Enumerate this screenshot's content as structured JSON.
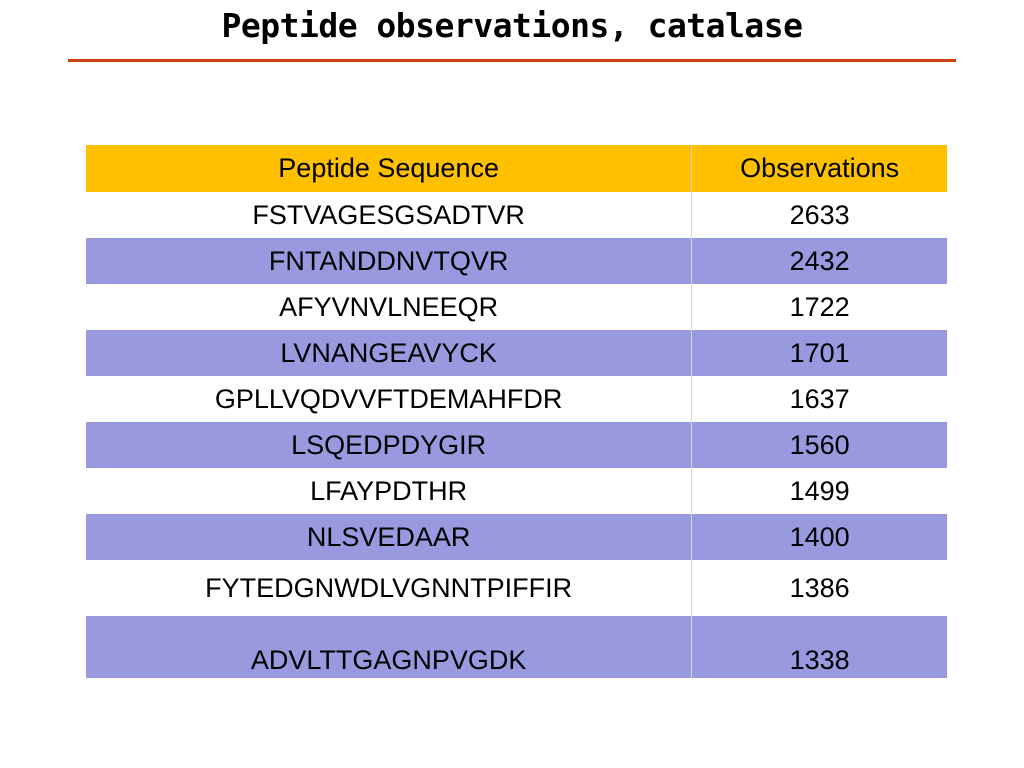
{
  "slide": {
    "title": "Peptide observations, catalase"
  },
  "table": {
    "headers": {
      "sequence": "Peptide Sequence",
      "observations": "Observations"
    },
    "rows": [
      {
        "sequence": "FSTVAGESGSADTVR",
        "observations": "2633"
      },
      {
        "sequence": "FNTANDDNVTQVR",
        "observations": "2432"
      },
      {
        "sequence": "AFYVNVLNEEQR",
        "observations": "1722"
      },
      {
        "sequence": "LVNANGEAVYCK",
        "observations": "1701"
      },
      {
        "sequence": "GPLLVQDVVFTDEMAHFDR",
        "observations": "1637"
      },
      {
        "sequence": "LSQEDPDYGIR",
        "observations": "1560"
      },
      {
        "sequence": "LFAYPDTHR",
        "observations": "1499"
      },
      {
        "sequence": "NLSVEDAAR",
        "observations": "1400"
      },
      {
        "sequence": "FYTEDGNWDLVGNNTPIFFIR",
        "observations": "1386"
      },
      {
        "sequence": "ADVLTTGAGNPVGDK",
        "observations": "1338"
      }
    ]
  },
  "colors": {
    "header_fill": "#ffc000",
    "alternate_row_fill": "#9999e0",
    "title_rule": "#cc4411"
  }
}
